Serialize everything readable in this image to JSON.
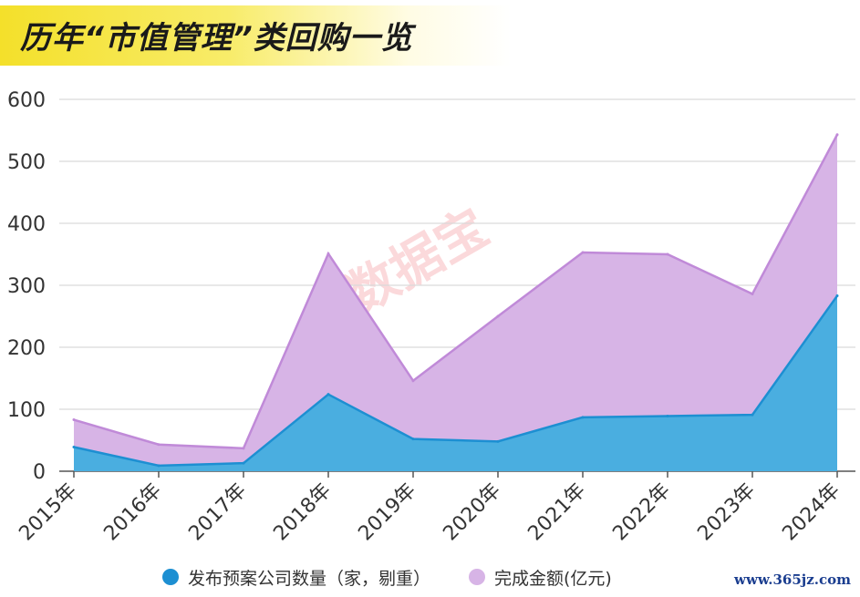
{
  "title": "历年“市值管理”类回购一览",
  "watermark": "数据宝",
  "site": "www.365jz.com",
  "legend": {
    "series1": "发布预案公司数量（家，剔重）",
    "series2": "完成金额(亿元)"
  },
  "colors": {
    "series1_fill": "#4aaee0",
    "series1_line": "#1d8fd2",
    "series2_fill": "#d7b4e6",
    "series2_line": "#c08ad8",
    "grid": "#d9d9d9",
    "banner": "#f4e02a"
  },
  "chart_data": {
    "type": "area",
    "categories": [
      "2015年",
      "2016年",
      "2017年",
      "2018年",
      "2019年",
      "2020年",
      "2021年",
      "2022年",
      "2023年",
      "2024年"
    ],
    "ylim": [
      0,
      600
    ],
    "yticks": [
      0,
      100,
      200,
      300,
      400,
      500,
      600
    ],
    "grid": true,
    "legend_position": "bottom",
    "series": [
      {
        "name": "发布预案公司数量（家，剔重）",
        "values": [
          39,
          9,
          13,
          124,
          52,
          48,
          87,
          89,
          91,
          283
        ]
      },
      {
        "name": "完成金额(亿元)",
        "values": [
          83,
          43,
          37,
          351,
          146,
          250,
          353,
          350,
          286,
          543
        ]
      }
    ]
  }
}
